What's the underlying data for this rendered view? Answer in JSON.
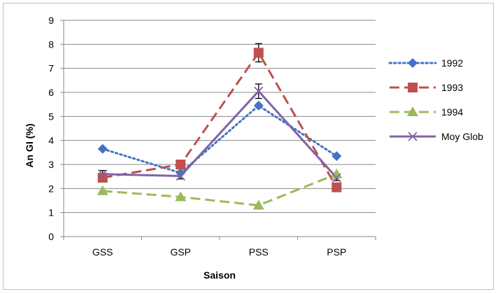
{
  "chart_data": {
    "type": "line",
    "title": "",
    "xlabel": "Saison",
    "ylabel": "An GI (%)",
    "categories": [
      "GSS",
      "GSP",
      "PSS",
      "PSP"
    ],
    "ylim": [
      0,
      9
    ],
    "yticks": [
      "0",
      "1",
      "2",
      "3",
      "4",
      "5",
      "6",
      "7",
      "8",
      "9"
    ],
    "grid": "horizontal",
    "legend": "right",
    "series": [
      {
        "name": "1992",
        "values": [
          3.65,
          2.65,
          5.45,
          3.35
        ],
        "color": "#4472c4",
        "dash": "dotted",
        "marker": "diamond"
      },
      {
        "name": "1993",
        "values": [
          2.45,
          3.0,
          7.65,
          2.05
        ],
        "color": "#c0504d",
        "dash": "dashed",
        "marker": "square"
      },
      {
        "name": "1994",
        "values": [
          1.9,
          1.65,
          1.3,
          2.6
        ],
        "color": "#9bbb59",
        "dash": "dashed",
        "marker": "triangle"
      },
      {
        "name": "Moy Glob",
        "values": [
          2.6,
          2.52,
          6.05,
          2.45
        ],
        "color": "#8064a2",
        "dash": "solid",
        "marker": "x",
        "error": [
          0.15,
          0.12,
          0.3,
          0.12
        ]
      }
    ],
    "error_bars_1993": [
      0.15,
      0.12,
      0.38,
      0.12
    ]
  }
}
